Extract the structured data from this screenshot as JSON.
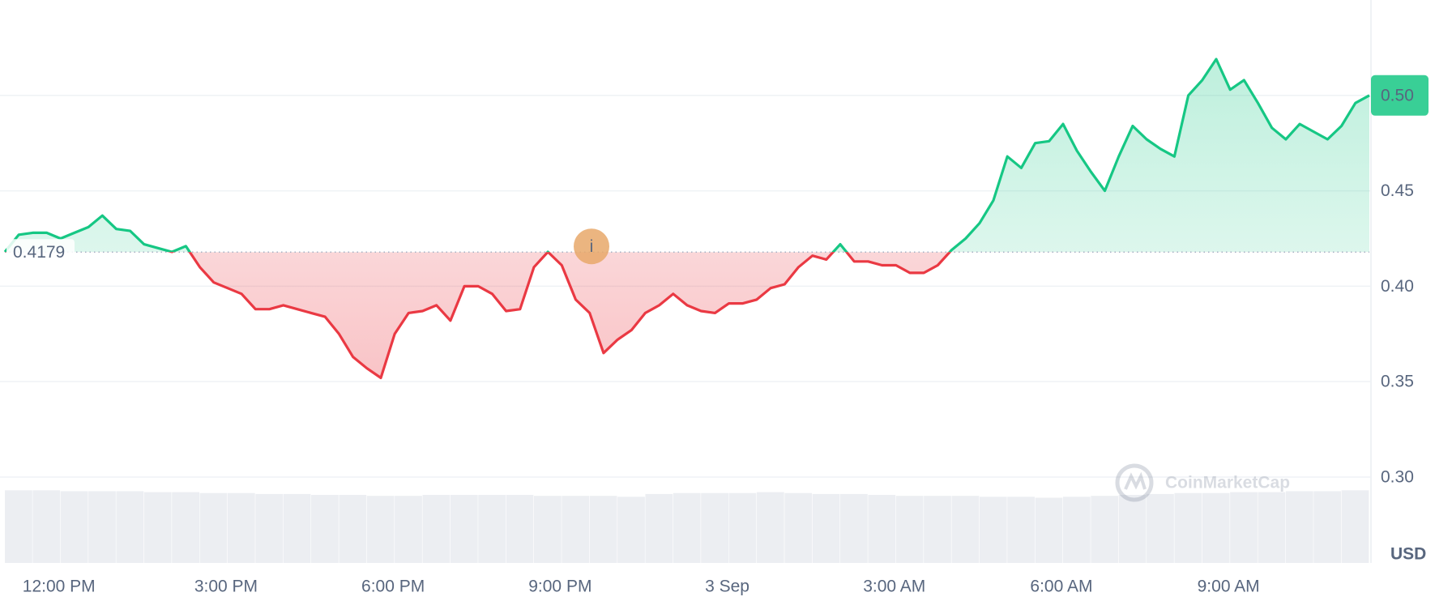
{
  "chart_data": {
    "type": "line",
    "categories": [
      null,
      null,
      null,
      null,
      "12:00 PM",
      null,
      null,
      null,
      null,
      null,
      null,
      null,
      null,
      null,
      null,
      null,
      "3:00 PM",
      null,
      null,
      null,
      null,
      null,
      null,
      null,
      null,
      null,
      null,
      null,
      "6:00 PM",
      null,
      null,
      null,
      null,
      null,
      null,
      null,
      null,
      null,
      null,
      null,
      "9:00 PM",
      null,
      null,
      null,
      null,
      null,
      null,
      null,
      null,
      null,
      null,
      null,
      "3 Sep",
      null,
      null,
      null,
      null,
      null,
      null,
      null,
      null,
      null,
      null,
      null,
      "3:00 AM",
      null,
      null,
      null,
      null,
      null,
      null,
      null,
      null,
      null,
      null,
      null,
      "6:00 AM",
      null,
      null,
      null,
      null,
      null,
      null,
      null,
      null,
      null,
      null,
      null,
      "9:00 AM",
      null,
      null,
      null,
      null,
      null,
      null,
      null,
      null,
      null,
      null
    ],
    "values": [
      0.418,
      0.427,
      0.428,
      0.428,
      0.425,
      0.428,
      0.431,
      0.437,
      0.43,
      0.429,
      0.422,
      0.42,
      0.418,
      0.421,
      0.41,
      0.402,
      0.399,
      0.396,
      0.388,
      0.388,
      0.39,
      0.388,
      0.386,
      0.384,
      0.375,
      0.363,
      0.357,
      0.352,
      0.375,
      0.386,
      0.387,
      0.39,
      0.382,
      0.4,
      0.4,
      0.396,
      0.387,
      0.388,
      0.41,
      0.418,
      0.411,
      0.393,
      0.386,
      0.365,
      0.372,
      0.377,
      0.386,
      0.39,
      0.396,
      0.39,
      0.387,
      0.386,
      0.391,
      0.391,
      0.393,
      0.399,
      0.401,
      0.41,
      0.416,
      0.414,
      0.422,
      0.413,
      0.413,
      0.411,
      0.411,
      0.407,
      0.407,
      0.411,
      0.419,
      0.425,
      0.433,
      0.445,
      0.468,
      0.462,
      0.475,
      0.476,
      0.485,
      0.471,
      0.46,
      0.45,
      0.468,
      0.484,
      0.477,
      0.472,
      0.468,
      0.5,
      0.508,
      0.519,
      0.503,
      0.508,
      0.496,
      0.483,
      0.477,
      0.485,
      0.481,
      0.477,
      0.484,
      0.496,
      0.5
    ],
    "baseline": 0.4179,
    "color_up": "#16c784",
    "color_down": "#ea3943",
    "ylim": [
      0.255,
      0.55
    ],
    "yticks": [
      {
        "value": 0.3,
        "label": "0.30"
      },
      {
        "value": 0.35,
        "label": "0.35"
      },
      {
        "value": 0.4,
        "label": "0.40"
      },
      {
        "value": 0.45,
        "label": "0.45"
      },
      {
        "value": 0.5,
        "label": "0.50"
      }
    ],
    "grid": true,
    "currency": "USD",
    "watermark": "CoinMarketCap",
    "annotation": "i",
    "volume": {
      "color": "#eceef2",
      "values": [
        78,
        78,
        77,
        77,
        77,
        76,
        76,
        75,
        75,
        74,
        74,
        73,
        73,
        72,
        72,
        73,
        73,
        73,
        73,
        72,
        72,
        72,
        71,
        74,
        75,
        75,
        75,
        76,
        75,
        74,
        74,
        73,
        72,
        72,
        72,
        71,
        71,
        70,
        71,
        72,
        73,
        74,
        75,
        75,
        76,
        76,
        77,
        77,
        78
      ]
    }
  }
}
